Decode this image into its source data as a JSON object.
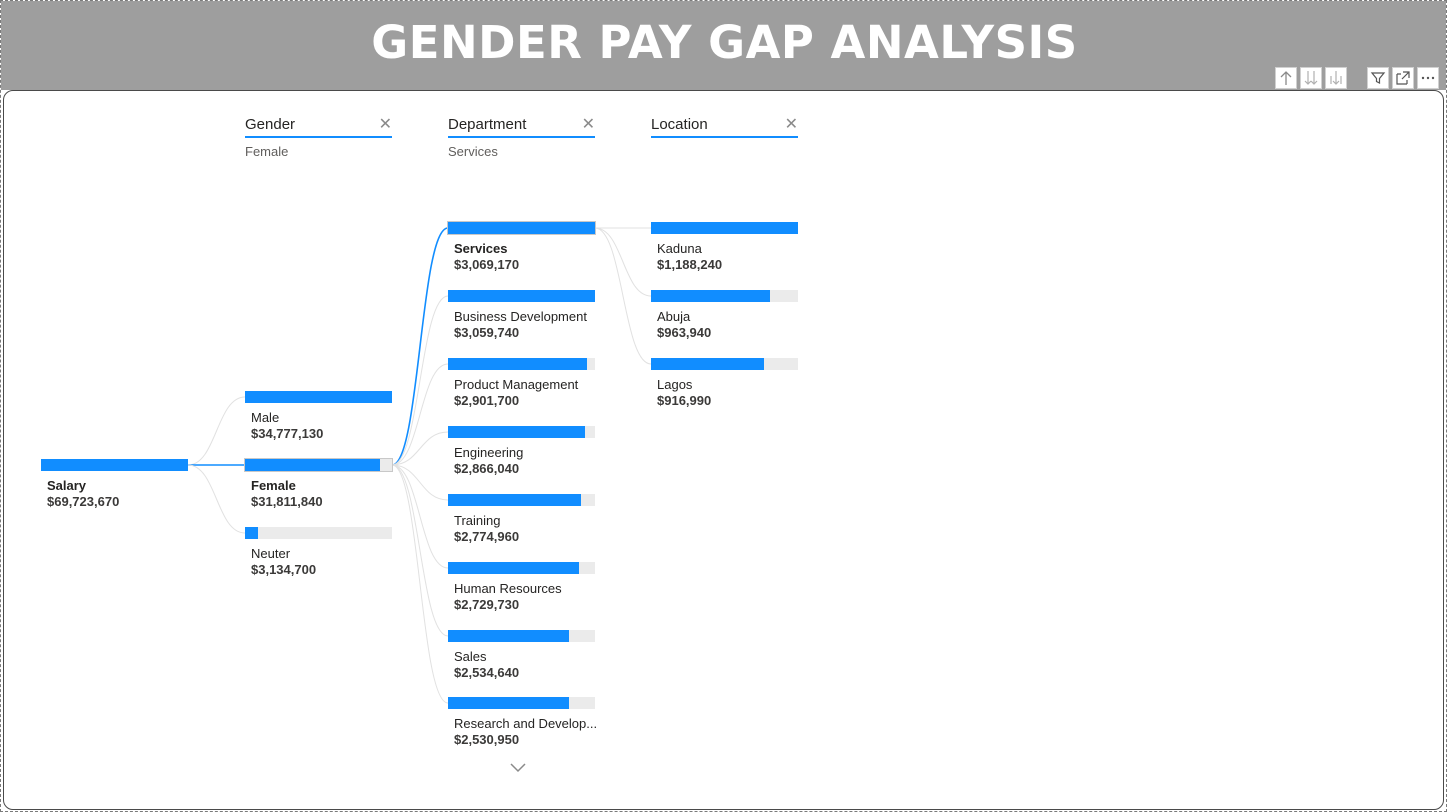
{
  "header": {
    "title": "GENDER PAY GAP ANALYSIS"
  },
  "toolbar": [
    {
      "icon": "arrow-up-icon"
    },
    {
      "icon": "double-arrow-down-icon"
    },
    {
      "icon": "expand-down-icon"
    },
    {
      "icon": "filter-icon"
    },
    {
      "icon": "focus-mode-icon"
    },
    {
      "icon": "more-options-icon"
    }
  ],
  "colors": {
    "accent": "#118dff",
    "track": "#ebebeb",
    "header_bg": "#9e9e9e"
  },
  "levels": [
    {
      "name": "Gender",
      "selected": "Female"
    },
    {
      "name": "Department",
      "selected": "Services"
    },
    {
      "name": "Location",
      "selected": ""
    }
  ],
  "root": {
    "label": "Salary",
    "value": "$69,723,670",
    "fraction": 1.0
  },
  "gender": [
    {
      "label": "Male",
      "value": "$34,777,130",
      "fraction": 1.0,
      "selected": false
    },
    {
      "label": "Female",
      "value": "$31,811,840",
      "fraction": 0.915,
      "selected": true
    },
    {
      "label": "Neuter",
      "value": "$3,134,700",
      "fraction": 0.09,
      "selected": false
    }
  ],
  "department": [
    {
      "label": "Services",
      "value": "$3,069,170",
      "fraction": 1.0,
      "selected": true
    },
    {
      "label": "Business Development",
      "value": "$3,059,740",
      "fraction": 0.997,
      "selected": false
    },
    {
      "label": "Product Management",
      "value": "$2,901,700",
      "fraction": 0.945,
      "selected": false
    },
    {
      "label": "Engineering",
      "value": "$2,866,040",
      "fraction": 0.934,
      "selected": false
    },
    {
      "label": "Training",
      "value": "$2,774,960",
      "fraction": 0.904,
      "selected": false
    },
    {
      "label": "Human Resources",
      "value": "$2,729,730",
      "fraction": 0.889,
      "selected": false
    },
    {
      "label": "Sales",
      "value": "$2,534,640",
      "fraction": 0.826,
      "selected": false
    },
    {
      "label": "Research and Develop...",
      "value": "$2,530,950",
      "fraction": 0.825,
      "selected": false
    }
  ],
  "location": [
    {
      "label": "Kaduna",
      "value": "$1,188,240",
      "fraction": 1.0,
      "selected": false
    },
    {
      "label": "Abuja",
      "value": "$963,940",
      "fraction": 0.811,
      "selected": false
    },
    {
      "label": "Lagos",
      "value": "$916,990",
      "fraction": 0.772,
      "selected": false
    }
  ],
  "more": {
    "icon": "chevron-down-icon"
  }
}
